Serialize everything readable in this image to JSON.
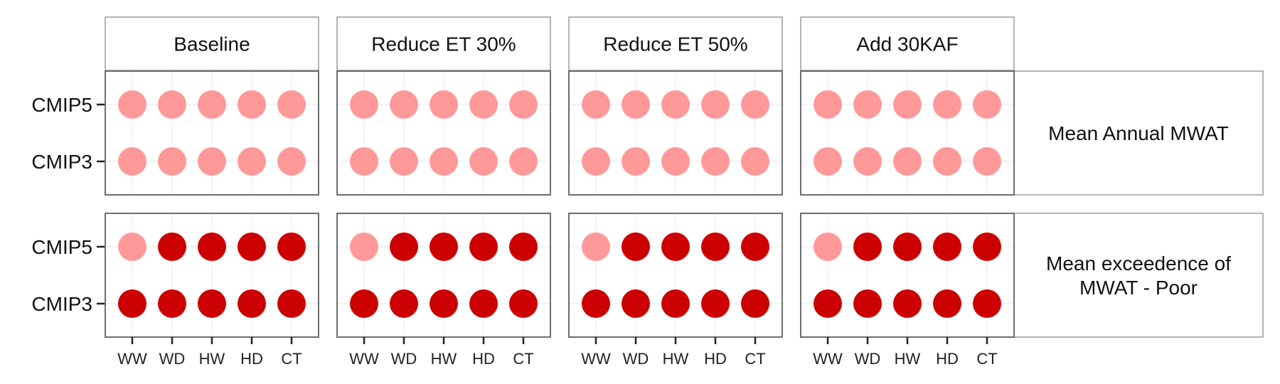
{
  "chart_data": {
    "type": "scatter",
    "columns": [
      "Baseline",
      "Reduce ET 30%",
      "Reduce ET 50%",
      "Add 30KAF"
    ],
    "rows": [
      {
        "label": [
          "Mean Annual MWAT"
        ]
      },
      {
        "label": [
          "Mean exceedence of",
          "MWAT - Poor"
        ]
      }
    ],
    "x_categories": [
      "WW",
      "WD",
      "HW",
      "HD",
      "CT"
    ],
    "y_categories": [
      "CMIP5",
      "CMIP3"
    ],
    "level_colors": {
      "light": "#ff9999",
      "dark": "#cc0000"
    },
    "cells": [
      [
        {
          "CMIP5": [
            "light",
            "light",
            "light",
            "light",
            "light"
          ],
          "CMIP3": [
            "light",
            "light",
            "light",
            "light",
            "light"
          ]
        },
        {
          "CMIP5": [
            "light",
            "light",
            "light",
            "light",
            "light"
          ],
          "CMIP3": [
            "light",
            "light",
            "light",
            "light",
            "light"
          ]
        },
        {
          "CMIP5": [
            "light",
            "light",
            "light",
            "light",
            "light"
          ],
          "CMIP3": [
            "light",
            "light",
            "light",
            "light",
            "light"
          ]
        },
        {
          "CMIP5": [
            "light",
            "light",
            "light",
            "light",
            "light"
          ],
          "CMIP3": [
            "light",
            "light",
            "light",
            "light",
            "light"
          ]
        }
      ],
      [
        {
          "CMIP5": [
            "light",
            "dark",
            "dark",
            "dark",
            "dark"
          ],
          "CMIP3": [
            "dark",
            "dark",
            "dark",
            "dark",
            "dark"
          ]
        },
        {
          "CMIP5": [
            "light",
            "dark",
            "dark",
            "dark",
            "dark"
          ],
          "CMIP3": [
            "dark",
            "dark",
            "dark",
            "dark",
            "dark"
          ]
        },
        {
          "CMIP5": [
            "light",
            "dark",
            "dark",
            "dark",
            "dark"
          ],
          "CMIP3": [
            "dark",
            "dark",
            "dark",
            "dark",
            "dark"
          ]
        },
        {
          "CMIP5": [
            "light",
            "dark",
            "dark",
            "dark",
            "dark"
          ],
          "CMIP3": [
            "dark",
            "dark",
            "dark",
            "dark",
            "dark"
          ]
        }
      ]
    ]
  }
}
